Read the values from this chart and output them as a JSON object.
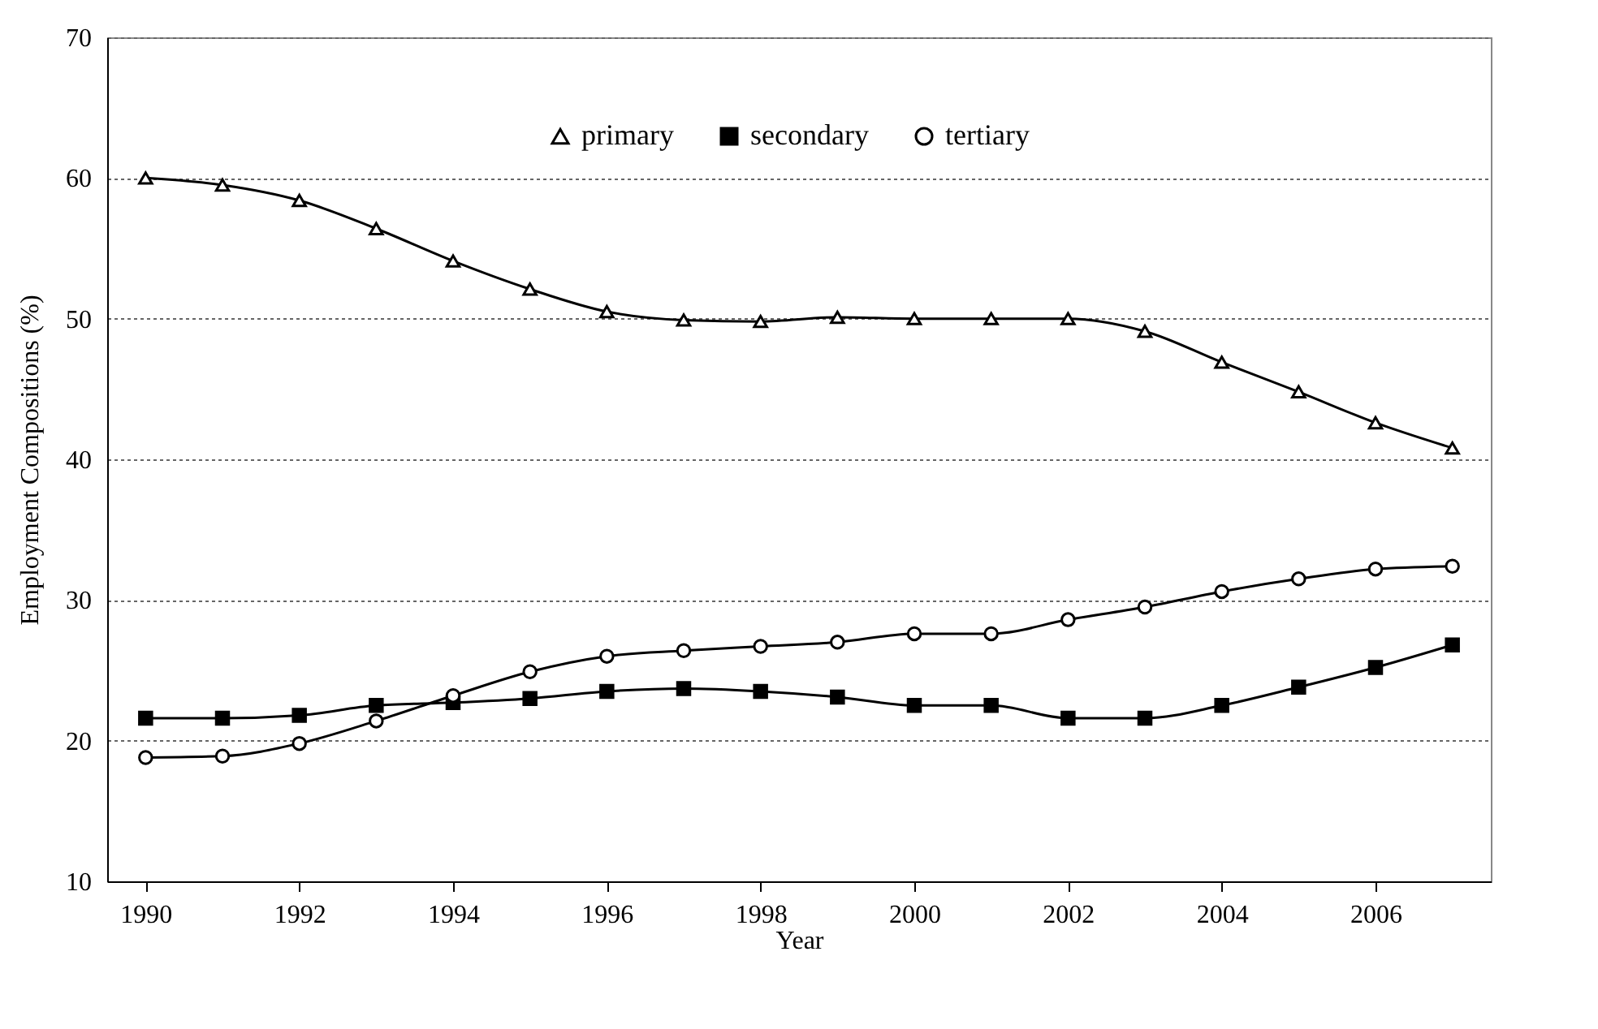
{
  "chart_data": {
    "type": "line",
    "xlabel": "Year",
    "ylabel": "Employment Compositions (%)",
    "x": [
      1990,
      1991,
      1992,
      1993,
      1994,
      1995,
      1996,
      1997,
      1998,
      1999,
      2000,
      2001,
      2002,
      2003,
      2004,
      2005,
      2006,
      2007
    ],
    "series": [
      {
        "name": "primary",
        "color": "#000000",
        "marker": "triangle",
        "values": [
          60.0,
          59.5,
          58.4,
          56.4,
          54.1,
          52.1,
          50.5,
          49.9,
          49.8,
          50.1,
          50.0,
          50.0,
          50.0,
          49.1,
          46.9,
          44.8,
          42.6,
          40.8
        ]
      },
      {
        "name": "secondary",
        "color": "#000000",
        "marker": "square",
        "values": [
          21.6,
          21.6,
          21.8,
          22.5,
          22.7,
          23.0,
          23.5,
          23.7,
          23.5,
          23.1,
          22.5,
          22.5,
          21.6,
          21.6,
          22.5,
          23.8,
          25.2,
          26.8
        ]
      },
      {
        "name": "tertiary",
        "color": "#000000",
        "marker": "circle",
        "values": [
          18.8,
          18.9,
          19.8,
          21.4,
          23.2,
          24.9,
          26.0,
          26.4,
          26.7,
          27.0,
          27.6,
          27.6,
          28.6,
          29.5,
          30.6,
          31.5,
          32.2,
          32.4
        ]
      }
    ],
    "xlim": [
      1989.5,
      2007.5
    ],
    "xticks": [
      1990,
      1992,
      1994,
      1996,
      1998,
      2000,
      2002,
      2004,
      2006
    ],
    "ylim": [
      10,
      70
    ],
    "yticks": [
      10,
      20,
      30,
      40,
      50,
      60,
      70
    ],
    "grid": "y",
    "legend": "top",
    "line_style": "solid"
  }
}
